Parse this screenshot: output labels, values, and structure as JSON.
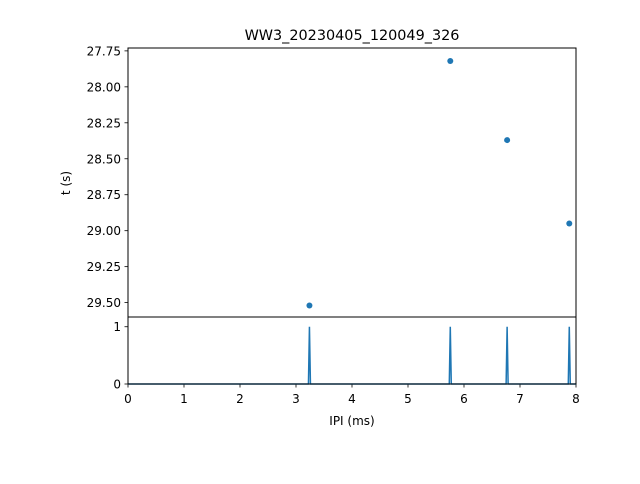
{
  "chart_data": [
    {
      "type": "scatter",
      "title": "WW3_20230405_120049_326",
      "xlabel": "",
      "ylabel": "t (s)",
      "xlim": [
        0,
        8
      ],
      "ylim": [
        29.6,
        27.73
      ],
      "y_inverted": true,
      "yticks": [
        "27.75",
        "28.00",
        "28.25",
        "28.50",
        "28.75",
        "29.00",
        "29.25",
        "29.50"
      ],
      "ytick_values": [
        27.75,
        28.0,
        28.25,
        28.5,
        28.75,
        29.0,
        29.25,
        29.5
      ],
      "points": [
        {
          "x": 3.24,
          "y": 29.52
        },
        {
          "x": 5.755,
          "y": 27.82
        },
        {
          "x": 6.77,
          "y": 28.37
        },
        {
          "x": 7.88,
          "y": 28.95
        }
      ],
      "color": "#1f77b4",
      "grid": false
    },
    {
      "type": "line",
      "xlabel": "IPI (ms)",
      "ylabel": "",
      "xlim": [
        0,
        8
      ],
      "ylim": [
        0,
        1.17
      ],
      "xticks": [
        "0",
        "1",
        "2",
        "3",
        "4",
        "5",
        "6",
        "7",
        "8"
      ],
      "xtick_values": [
        0,
        1,
        2,
        3,
        4,
        5,
        6,
        7,
        8
      ],
      "yticks": [
        "0",
        "1"
      ],
      "ytick_values": [
        0,
        1
      ],
      "spikes": [
        3.24,
        5.755,
        6.77,
        7.88
      ],
      "spike_height": 1,
      "color": "#1f77b4",
      "grid": false
    }
  ]
}
